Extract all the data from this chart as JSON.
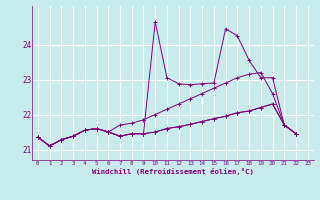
{
  "xlabel": "Windchill (Refroidissement éolien,°C)",
  "bg_color": "#c8ecec",
  "line_color": "#800080",
  "grid_color": "#ffffff",
  "xlim": [
    -0.5,
    23.5
  ],
  "ylim": [
    20.7,
    25.1
  ],
  "yticks": [
    21,
    22,
    23,
    24
  ],
  "xticks": [
    0,
    1,
    2,
    3,
    4,
    5,
    6,
    7,
    8,
    9,
    10,
    11,
    12,
    13,
    14,
    15,
    16,
    17,
    18,
    19,
    20,
    21,
    22,
    23
  ],
  "x_values": [
    0,
    1,
    2,
    3,
    4,
    5,
    6,
    7,
    8,
    9,
    10,
    11,
    12,
    13,
    14,
    15,
    16,
    17,
    18,
    19,
    20,
    21,
    22
  ],
  "series": [
    [
      21.35,
      21.1,
      21.28,
      21.38,
      21.55,
      21.6,
      21.5,
      21.38,
      21.45,
      21.45,
      24.65,
      23.05,
      22.88,
      22.85,
      22.88,
      22.9,
      24.45,
      24.25,
      23.55,
      23.05,
      23.05,
      21.7,
      21.45
    ],
    [
      21.35,
      21.1,
      21.28,
      21.38,
      21.55,
      21.6,
      21.5,
      21.7,
      21.75,
      21.85,
      22.0,
      22.15,
      22.3,
      22.45,
      22.6,
      22.75,
      22.9,
      23.05,
      23.15,
      23.2,
      22.6,
      21.7,
      21.45
    ],
    [
      21.35,
      21.1,
      21.28,
      21.38,
      21.55,
      21.6,
      21.5,
      21.38,
      21.45,
      21.45,
      21.5,
      21.6,
      21.65,
      21.72,
      21.8,
      21.88,
      21.95,
      22.05,
      22.1,
      22.2,
      22.3,
      21.7,
      21.45
    ],
    [
      21.35,
      21.1,
      21.28,
      21.38,
      21.55,
      21.6,
      21.5,
      21.38,
      21.45,
      21.45,
      21.5,
      21.6,
      21.65,
      21.72,
      21.8,
      21.88,
      21.95,
      22.05,
      22.1,
      22.2,
      22.3,
      21.7,
      21.45
    ]
  ]
}
